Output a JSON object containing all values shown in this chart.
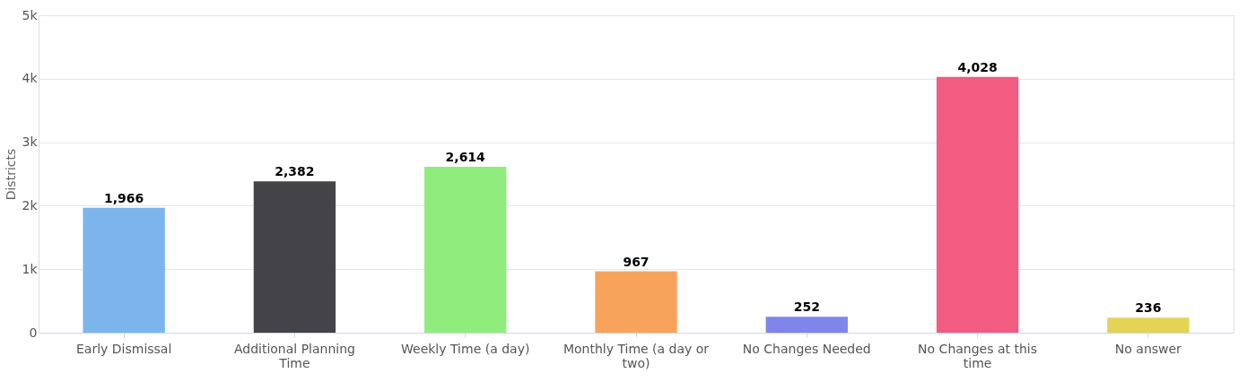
{
  "chart_data": {
    "type": "bar",
    "ylabel": "Districts",
    "categories": [
      "Early Dismissal",
      "Additional Planning Time",
      "Weekly Time (a day)",
      "Monthly Time (a day or two)",
      "No Changes Needed",
      "No Changes at this time",
      "No answer"
    ],
    "values": [
      1966,
      2382,
      2614,
      967,
      252,
      4028,
      236
    ],
    "colors": [
      "#7cb5ec",
      "#434348",
      "#90ed7d",
      "#f7a35c",
      "#8085e9",
      "#f15c80",
      "#e4d354"
    ],
    "ylim": [
      0,
      5000
    ],
    "yticks": [
      {
        "value": 0,
        "label": "0"
      },
      {
        "value": 1000,
        "label": "1k"
      },
      {
        "value": 2000,
        "label": "2k"
      },
      {
        "value": 3000,
        "label": "3k"
      },
      {
        "value": 4000,
        "label": "4k"
      },
      {
        "value": 5000,
        "label": "5k"
      }
    ],
    "value_labels": [
      "1,966",
      "2,382",
      "2,614",
      "967",
      "252",
      "4,028",
      "236"
    ],
    "grid": "y"
  }
}
